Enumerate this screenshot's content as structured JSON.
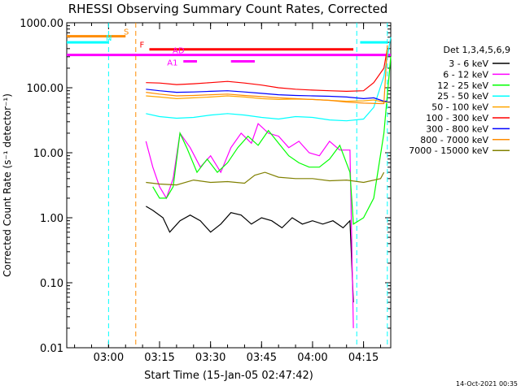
{
  "chart_data": {
    "type": "line",
    "title": "RHESSI Observing Summary Count Rates, Corrected",
    "xlabel": "Start Time (15-Jan-05 02:47:42)",
    "ylabel": "Corrected Count Rate (s⁻¹ detector⁻¹)",
    "footer": "14-Oct-2021 00:35",
    "y_scale": "log",
    "ylim": [
      0.01,
      1000
    ],
    "xlim": [
      "02:47:42",
      "04:23:00"
    ],
    "y_ticks": [
      "0.01",
      "0.10",
      "1.00",
      "10.00",
      "100.00",
      "1000.00"
    ],
    "x_ticks": [
      "03:00",
      "03:15",
      "03:30",
      "03:45",
      "04:00",
      "04:15"
    ],
    "legend_title": "Det 1,3,4,5,6,9",
    "legend_position": "right",
    "series": [
      {
        "name": "3 - 6 keV",
        "color": "#000000",
        "x": [
          "03:11",
          "03:13",
          "03:16",
          "03:18",
          "03:21",
          "03:24",
          "03:27",
          "03:30",
          "03:33",
          "03:36",
          "03:39",
          "03:42",
          "03:45",
          "03:48",
          "03:51",
          "03:54",
          "03:57",
          "04:00",
          "04:03",
          "04:06",
          "04:09",
          "04:11",
          "04:12"
        ],
        "y": [
          1.5,
          1.3,
          1.0,
          0.6,
          0.9,
          1.1,
          0.9,
          0.6,
          0.8,
          1.2,
          1.1,
          0.8,
          1.0,
          0.9,
          0.7,
          1.0,
          0.8,
          0.9,
          0.8,
          0.9,
          0.7,
          0.9,
          0.05
        ]
      },
      {
        "name": "6 - 12 keV",
        "color": "#ff00ff",
        "x": [
          "03:11",
          "03:13",
          "03:15",
          "03:17",
          "03:19",
          "03:21",
          "03:24",
          "03:27",
          "03:30",
          "03:33",
          "03:36",
          "03:39",
          "03:42",
          "03:44",
          "03:47",
          "03:50",
          "03:53",
          "03:56",
          "03:59",
          "04:02",
          "04:05",
          "04:08",
          "04:11",
          "04:12"
        ],
        "y": [
          15,
          6,
          3,
          2,
          4,
          20,
          12,
          6,
          9,
          5,
          12,
          20,
          14,
          28,
          20,
          18,
          12,
          15,
          10,
          9,
          15,
          11,
          11,
          0.02
        ]
      },
      {
        "name": "12 - 25 keV",
        "color": "#00ff00",
        "x": [
          "03:13",
          "03:15",
          "03:17",
          "03:19",
          "03:21",
          "03:23",
          "03:26",
          "03:29",
          "03:32",
          "03:35",
          "03:38",
          "03:41",
          "03:44",
          "03:47",
          "03:50",
          "03:53",
          "03:56",
          "03:59",
          "04:02",
          "04:05",
          "04:08",
          "04:11",
          "04:12",
          "04:15",
          "04:18",
          "04:21",
          "04:23"
        ],
        "y": [
          3,
          2,
          2,
          3,
          20,
          12,
          5,
          8,
          5,
          7,
          12,
          18,
          13,
          22,
          14,
          9,
          7,
          6,
          6,
          8,
          13,
          5,
          0.8,
          1.0,
          2,
          20,
          300
        ]
      },
      {
        "name": "25 - 50 keV",
        "color": "#00ffff",
        "x": [
          "03:11",
          "03:15",
          "03:20",
          "03:25",
          "03:30",
          "03:35",
          "03:40",
          "03:45",
          "03:50",
          "03:55",
          "04:00",
          "04:05",
          "04:10",
          "04:15",
          "04:18",
          "04:21",
          "04:23"
        ],
        "y": [
          40,
          36,
          34,
          35,
          38,
          40,
          38,
          35,
          33,
          36,
          35,
          32,
          31,
          33,
          50,
          150,
          600
        ]
      },
      {
        "name": "50 - 100 keV",
        "color": "#ffa500",
        "x": [
          "03:11",
          "03:15",
          "03:20",
          "03:25",
          "03:30",
          "03:35",
          "03:40",
          "03:45",
          "03:50",
          "03:55",
          "04:00",
          "04:05",
          "04:10",
          "04:15",
          "04:18",
          "04:21",
          "04:22"
        ],
        "y": [
          75,
          72,
          68,
          70,
          72,
          75,
          72,
          68,
          66,
          67,
          66,
          64,
          62,
          63,
          65,
          60,
          60
        ]
      },
      {
        "name": "100 - 300 keV",
        "color": "#ff0000",
        "x": [
          "03:11",
          "03:15",
          "03:20",
          "03:25",
          "03:30",
          "03:35",
          "03:40",
          "03:45",
          "03:50",
          "03:55",
          "04:00",
          "04:05",
          "04:10",
          "04:15",
          "04:18",
          "04:21",
          "04:22"
        ],
        "y": [
          120,
          118,
          112,
          115,
          120,
          125,
          118,
          110,
          100,
          95,
          92,
          90,
          88,
          90,
          120,
          200,
          400
        ]
      },
      {
        "name": "300 - 800 keV",
        "color": "#0000ff",
        "x": [
          "03:11",
          "03:15",
          "03:20",
          "03:25",
          "03:30",
          "03:35",
          "03:40",
          "03:45",
          "03:50",
          "03:55",
          "04:00",
          "04:05",
          "04:10",
          "04:15",
          "04:18",
          "04:21",
          "04:22"
        ],
        "y": [
          95,
          90,
          85,
          86,
          88,
          90,
          86,
          82,
          78,
          76,
          75,
          74,
          72,
          68,
          70,
          62,
          62
        ]
      },
      {
        "name": "800 - 7000 keV",
        "color": "#ff8c00",
        "x": [
          "03:11",
          "03:15",
          "03:20",
          "03:25",
          "03:30",
          "03:35",
          "03:40",
          "03:45",
          "03:50",
          "03:55",
          "04:00",
          "04:05",
          "04:10",
          "04:15",
          "04:20",
          "04:21",
          "04:22"
        ],
        "y": [
          85,
          80,
          75,
          76,
          78,
          80,
          76,
          73,
          70,
          68,
          66,
          64,
          60,
          58,
          57,
          57,
          450
        ]
      },
      {
        "name": "7000 - 15000 keV",
        "color": "#808000",
        "x": [
          "03:11",
          "03:15",
          "03:20",
          "03:25",
          "03:30",
          "03:35",
          "03:40",
          "03:43",
          "03:46",
          "03:50",
          "03:55",
          "04:00",
          "04:05",
          "04:10",
          "04:15",
          "04:20",
          "04:21"
        ],
        "y": [
          3.5,
          3.3,
          3.2,
          3.8,
          3.5,
          3.6,
          3.4,
          4.5,
          5,
          4.2,
          4,
          4,
          3.7,
          3.8,
          3.5,
          4,
          5
        ]
      }
    ],
    "flags": [
      {
        "label": "S",
        "color": "#ff8c00",
        "level": 620,
        "segments": [
          [
            "02:47:42",
            "03:05"
          ]
        ]
      },
      {
        "label": "N",
        "color": "#00ffff",
        "level": 500,
        "segments": [
          [
            "02:47:42",
            "03:00"
          ],
          [
            "04:14",
            "04:22"
          ]
        ]
      },
      {
        "label": "F",
        "color": "#ff0000",
        "level": 390,
        "segments": [
          [
            "03:12",
            "04:12"
          ]
        ]
      },
      {
        "label": "AD",
        "color": "#ff00ff",
        "level": 320,
        "segments": [
          [
            "02:47:42",
            "04:23"
          ]
        ]
      },
      {
        "label": "A1",
        "color": "#ff00ff",
        "level": 255,
        "segments": [
          [
            "03:22",
            "03:26"
          ],
          [
            "03:36",
            "03:43"
          ]
        ]
      }
    ],
    "flag_labels": {
      "S": "S",
      "N": "N",
      "F": "F",
      "AD": "AD",
      "A1": "A1"
    },
    "vlines": [
      {
        "time": "03:00",
        "color": "#00ffff"
      },
      {
        "time": "03:08",
        "color": "#ff8c00"
      },
      {
        "time": "04:13",
        "color": "#00ffff"
      },
      {
        "time": "04:22",
        "color": "#00ffff"
      }
    ]
  }
}
